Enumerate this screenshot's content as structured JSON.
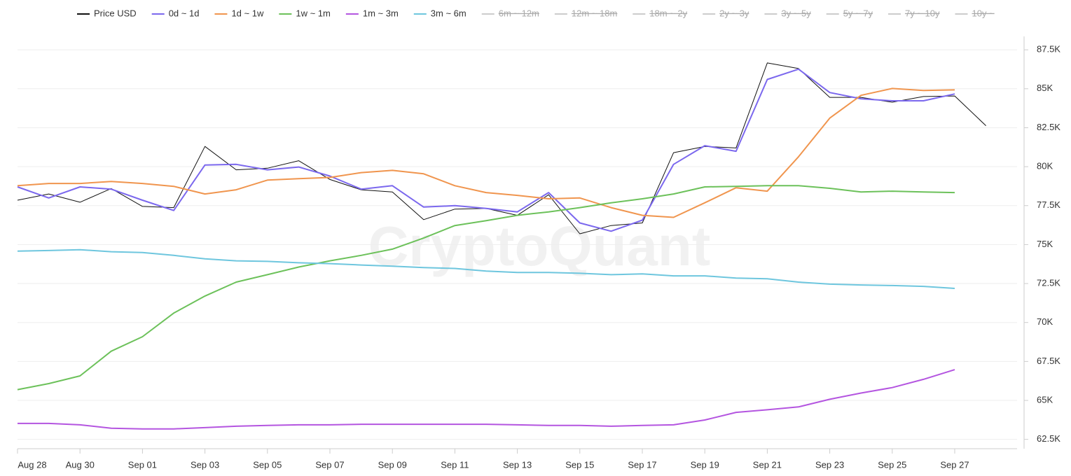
{
  "chart_data": {
    "type": "line",
    "watermark": "CryptoQuant",
    "categories": [
      "Aug 28",
      null,
      "Aug 30",
      null,
      "Sep 01",
      null,
      "Sep 03",
      null,
      "Sep 05",
      null,
      "Sep 07",
      null,
      "Sep 09",
      null,
      "Sep 11",
      null,
      "Sep 13",
      null,
      "Sep 15",
      null,
      "Sep 17",
      null,
      "Sep 19",
      null,
      "Sep 21",
      null,
      "Sep 23",
      null,
      "Sep 25",
      null,
      "Sep 27",
      null
    ],
    "series": [
      {
        "name": "Price USD",
        "color": "#111111",
        "width": 1,
        "values": [
          77.85,
          78.25,
          77.72,
          78.6,
          77.45,
          77.37,
          81.3,
          79.8,
          79.9,
          80.38,
          79.18,
          78.52,
          78.38,
          76.6,
          77.28,
          77.32,
          76.88,
          78.2,
          75.69,
          76.22,
          76.39,
          80.9,
          81.3,
          81.2,
          86.66,
          86.3,
          84.45,
          84.45,
          84.14,
          84.5,
          84.54,
          82.63
        ]
      },
      {
        "name": "0d ~ 1d",
        "color": "#7b68ee",
        "width": 2,
        "values": [
          78.7,
          77.99,
          78.7,
          78.56,
          77.85,
          77.19,
          80.11,
          80.15,
          79.8,
          79.98,
          79.4,
          78.56,
          78.78,
          77.41,
          77.5,
          77.32,
          77.1,
          78.34,
          76.39,
          75.86,
          76.57,
          80.15,
          81.35,
          80.99,
          85.6,
          86.26,
          84.76,
          84.36,
          84.23,
          84.23,
          84.67,
          null
        ]
      },
      {
        "name": "1d ~ 1w",
        "color": "#f0954e",
        "width": 2,
        "values": [
          78.78,
          78.92,
          78.92,
          79.05,
          78.92,
          78.74,
          78.25,
          78.52,
          79.14,
          79.23,
          79.31,
          79.62,
          79.76,
          79.54,
          78.78,
          78.34,
          78.16,
          77.94,
          77.99,
          77.37,
          76.88,
          76.75,
          77.68,
          78.65,
          78.43,
          80.64,
          83.12,
          84.58,
          85.02,
          84.89,
          84.93,
          null
        ]
      },
      {
        "name": "1w ~ 1m",
        "color": "#6cc15a",
        "width": 2,
        "values": [
          65.69,
          66.08,
          66.57,
          68.16,
          69.09,
          70.6,
          71.7,
          72.59,
          73.07,
          73.56,
          73.96,
          74.31,
          74.71,
          75.42,
          76.22,
          76.53,
          76.88,
          77.1,
          77.37,
          77.68,
          77.94,
          78.25,
          78.7,
          78.74,
          78.78,
          78.78,
          78.61,
          78.38,
          78.43,
          78.38,
          78.34,
          null
        ]
      },
      {
        "name": "1m ~ 3m",
        "color": "#b455e0",
        "width": 2,
        "values": [
          63.52,
          63.52,
          63.43,
          63.21,
          63.17,
          63.17,
          63.25,
          63.34,
          63.39,
          63.43,
          63.43,
          63.47,
          63.47,
          63.47,
          63.47,
          63.47,
          63.43,
          63.39,
          63.39,
          63.34,
          63.39,
          63.43,
          63.74,
          64.23,
          64.4,
          64.58,
          65.07,
          65.47,
          65.82,
          66.35,
          66.97,
          null
        ]
      },
      {
        "name": "3m ~ 6m",
        "color": "#6ec6de",
        "width": 2,
        "values": [
          74.58,
          74.62,
          74.67,
          74.54,
          74.49,
          74.31,
          74.09,
          73.96,
          73.92,
          73.83,
          73.78,
          73.69,
          73.61,
          73.52,
          73.47,
          73.3,
          73.21,
          73.21,
          73.16,
          73.07,
          73.12,
          72.99,
          72.99,
          72.85,
          72.81,
          72.59,
          72.46,
          72.41,
          72.37,
          72.32,
          72.19,
          null
        ]
      }
    ],
    "hidden_series": [
      "6m ~ 12m",
      "12m ~ 18m",
      "18m ~ 2y",
      "2y ~ 3y",
      "3y ~ 5y",
      "5y ~ 7y",
      "7y ~ 10y",
      "10y ~"
    ],
    "hidden_color": "#cccccc",
    "ylim": [
      61.9,
      88.9
    ],
    "yticks": [
      {
        "value": 62.5,
        "label": "62.5K"
      },
      {
        "value": 65,
        "label": "65K"
      },
      {
        "value": 67.5,
        "label": "67.5K"
      },
      {
        "value": 70,
        "label": "70K"
      },
      {
        "value": 72.5,
        "label": "72.5K"
      },
      {
        "value": 75,
        "label": "75K"
      },
      {
        "value": 77.5,
        "label": "77.5K"
      },
      {
        "value": 80,
        "label": "80K"
      },
      {
        "value": 82.5,
        "label": "82.5K"
      },
      {
        "value": 85,
        "label": "85K"
      },
      {
        "value": 87.5,
        "label": "87.5K"
      }
    ],
    "grid": true
  }
}
